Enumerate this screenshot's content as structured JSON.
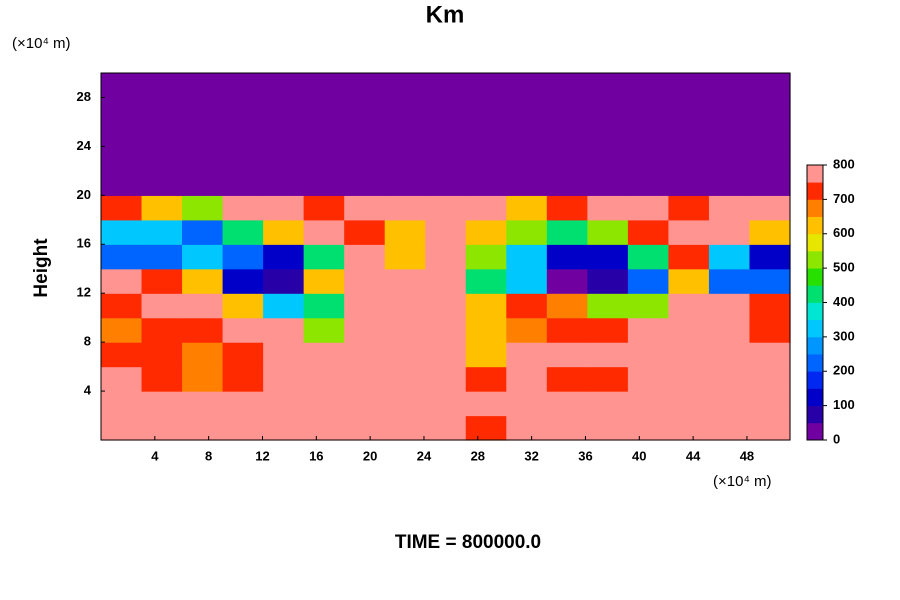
{
  "chart_data": {
    "type": "contour",
    "title": "Km",
    "y_unit": "(×10⁴ m)",
    "x_unit": "(×10⁴ m)",
    "ylabel": "Height",
    "footer": "TIME = 800000.0",
    "xlim": [
      0,
      51.2
    ],
    "ylim": [
      0,
      30
    ],
    "xticks": [
      4,
      8,
      12,
      16,
      20,
      24,
      28,
      32,
      36,
      40,
      44,
      48
    ],
    "yticks": [
      4,
      8,
      12,
      16,
      20,
      24,
      28
    ],
    "clim": [
      0,
      800
    ],
    "cticks": [
      0,
      100,
      200,
      300,
      400,
      500,
      600,
      700,
      800
    ],
    "colors": [
      "#7000a0",
      "#2800a8",
      "#0000c8",
      "#0028f0",
      "#0064ff",
      "#0096ff",
      "#00c8ff",
      "#00e6d2",
      "#00e070",
      "#28e000",
      "#8ce600",
      "#e6e600",
      "#ffc000",
      "#ff8000",
      "#ff2a00",
      "#ff9490"
    ],
    "z": [
      [
        800,
        800,
        800,
        800,
        800,
        800,
        800,
        800,
        800,
        700,
        800,
        800,
        800,
        800,
        800,
        800,
        800
      ],
      [
        800,
        750,
        800,
        800,
        800,
        800,
        800,
        800,
        800,
        800,
        750,
        800,
        800,
        800,
        800,
        800,
        800
      ],
      [
        750,
        700,
        650,
        700,
        800,
        800,
        800,
        800,
        800,
        700,
        750,
        700,
        700,
        800,
        800,
        800,
        800
      ],
      [
        700,
        700,
        650,
        700,
        800,
        800,
        800,
        800,
        800,
        600,
        750,
        800,
        750,
        800,
        800,
        800,
        750
      ],
      [
        650,
        700,
        700,
        750,
        800,
        500,
        800,
        800,
        750,
        600,
        650,
        700,
        700,
        800,
        800,
        800,
        700
      ],
      [
        700,
        800,
        750,
        600,
        300,
        400,
        800,
        800,
        800,
        600,
        700,
        650,
        500,
        500,
        800,
        800,
        700
      ],
      [
        800,
        700,
        600,
        100,
        50,
        600,
        800,
        800,
        800,
        400,
        300,
        0,
        50,
        200,
        600,
        200,
        200
      ],
      [
        200,
        200,
        300,
        200,
        100,
        400,
        800,
        600,
        800,
        500,
        300,
        100,
        100,
        400,
        700,
        300,
        100
      ],
      [
        300,
        300,
        200,
        400,
        600,
        800,
        700,
        600,
        800,
        600,
        500,
        400,
        500,
        700,
        800,
        800,
        600
      ],
      [
        700,
        600,
        500,
        800,
        800,
        700,
        800,
        800,
        800,
        800,
        600,
        700,
        800,
        800,
        700,
        800,
        800
      ],
      [
        0,
        0,
        0,
        0,
        0,
        0,
        0,
        0,
        0,
        0,
        0,
        0,
        0,
        0,
        0,
        0,
        0
      ],
      [
        0,
        0,
        0,
        0,
        0,
        0,
        0,
        0,
        0,
        0,
        0,
        0,
        0,
        0,
        0,
        0,
        0
      ],
      [
        0,
        0,
        0,
        0,
        0,
        0,
        0,
        0,
        0,
        0,
        0,
        0,
        0,
        0,
        0,
        0,
        0
      ],
      [
        0,
        0,
        0,
        0,
        0,
        0,
        0,
        0,
        0,
        0,
        0,
        0,
        0,
        0,
        0,
        0,
        0
      ],
      [
        0,
        0,
        0,
        0,
        0,
        0,
        0,
        0,
        0,
        0,
        0,
        0,
        0,
        0,
        0,
        0,
        0
      ]
    ]
  }
}
